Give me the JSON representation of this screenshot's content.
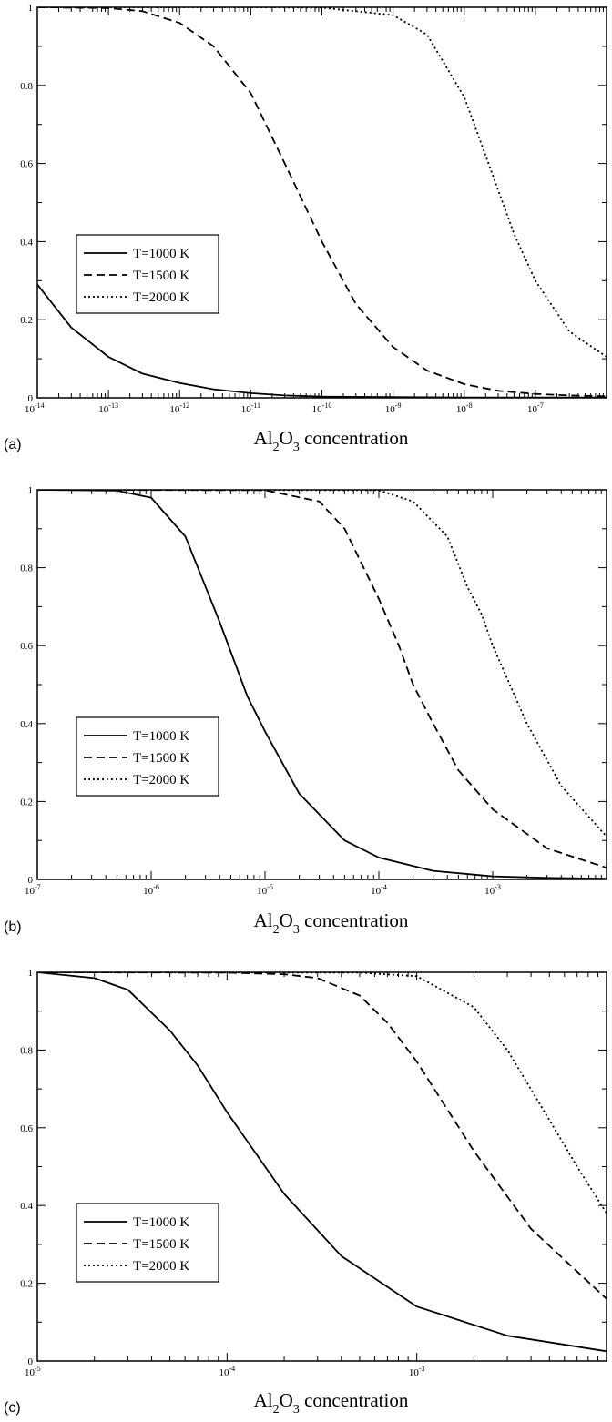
{
  "chart_data": [
    {
      "type": "line",
      "panel_label": "(a)",
      "xscale": "log",
      "xlim": [
        1e-14,
        1e-06
      ],
      "ylim": [
        0,
        1
      ],
      "x_tick_exponents": [
        "-14",
        "-13",
        "-12",
        "-11",
        "-10",
        "-9",
        "-8",
        "-7"
      ],
      "y_ticks": [
        "0",
        "0.2",
        "0.4",
        "0.6",
        "0.8",
        "1"
      ],
      "xlabel": {
        "base": "Al",
        "sub1": "2",
        "mid": "O",
        "sub2": "3",
        "rest": " concentration"
      },
      "legend_position": "lower-left",
      "series": [
        {
          "name": "T=1000 K",
          "style": "solid",
          "x": [
            1e-14,
            3e-14,
            1e-13,
            3e-13,
            1e-12,
            3e-12,
            1e-11,
            3e-11,
            1e-10,
            1e-09,
            1e-08,
            1e-07,
            1e-06
          ],
          "y": [
            0.29,
            0.18,
            0.105,
            0.062,
            0.038,
            0.022,
            0.012,
            0.006,
            0.003,
            0.002,
            0.001,
            0.001,
            0.001
          ]
        },
        {
          "name": "T=1500 K",
          "style": "dashed",
          "x": [
            1e-14,
            1e-13,
            3e-13,
            1e-12,
            3e-12,
            1e-11,
            3e-11,
            1e-10,
            3e-10,
            1e-09,
            3e-09,
            1e-08,
            3e-08,
            1e-07,
            3e-07,
            1e-06
          ],
          "y": [
            1.0,
            0.998,
            0.99,
            0.96,
            0.9,
            0.78,
            0.6,
            0.4,
            0.24,
            0.13,
            0.07,
            0.035,
            0.018,
            0.01,
            0.006,
            0.004
          ]
        },
        {
          "name": "T=2000 K",
          "style": "dotted",
          "x": [
            1e-14,
            1e-11,
            1e-10,
            1e-09,
            3e-09,
            1e-08,
            2e-08,
            5e-08,
            1e-07,
            3e-07,
            1e-06
          ],
          "y": [
            1.0,
            1.0,
            0.999,
            0.98,
            0.93,
            0.77,
            0.62,
            0.42,
            0.3,
            0.17,
            0.105
          ]
        }
      ]
    },
    {
      "type": "line",
      "panel_label": "(b)",
      "xscale": "log",
      "xlim": [
        1e-07,
        0.01
      ],
      "ylim": [
        0,
        1
      ],
      "x_tick_exponents": [
        "-7",
        "-6",
        "-5",
        "-4",
        "-3"
      ],
      "y_ticks": [
        "0",
        "0.2",
        "0.4",
        "0.6",
        "0.8",
        "1"
      ],
      "xlabel": {
        "base": "Al",
        "sub1": "2",
        "mid": "O",
        "sub2": "3",
        "rest": " concentration"
      },
      "legend_position": "lower-left",
      "series": [
        {
          "name": "T=1000 K",
          "style": "solid",
          "x": [
            1e-07,
            5e-07,
            1e-06,
            2e-06,
            4e-06,
            7e-06,
            1e-05,
            2e-05,
            5e-05,
            0.0001,
            0.0003,
            0.001,
            0.003,
            0.01
          ],
          "y": [
            1.0,
            0.998,
            0.98,
            0.88,
            0.66,
            0.47,
            0.38,
            0.22,
            0.1,
            0.056,
            0.022,
            0.008,
            0.004,
            0.002
          ]
        },
        {
          "name": "T=1500 K",
          "style": "dashed",
          "x": [
            1e-07,
            1e-05,
            3e-05,
            5e-05,
            0.0001,
            0.00015,
            0.0002,
            0.0003,
            0.0005,
            0.001,
            0.003,
            0.01
          ],
          "y": [
            1.0,
            0.999,
            0.97,
            0.9,
            0.72,
            0.6,
            0.5,
            0.4,
            0.28,
            0.18,
            0.08,
            0.03
          ]
        },
        {
          "name": "T=2000 K",
          "style": "dotted",
          "x": [
            1e-07,
            0.0001,
            0.0002,
            0.0004,
            0.0006,
            0.0008,
            0.001,
            0.002,
            0.004,
            0.01
          ],
          "y": [
            1.0,
            0.999,
            0.97,
            0.88,
            0.75,
            0.68,
            0.6,
            0.4,
            0.24,
            0.11
          ]
        }
      ]
    },
    {
      "type": "line",
      "panel_label": "(c)",
      "xscale": "log",
      "xlim": [
        1e-05,
        0.01
      ],
      "ylim": [
        0,
        1
      ],
      "x_tick_exponents": [
        "-5",
        "-4",
        "-3"
      ],
      "y_ticks": [
        "0",
        "0.2",
        "0.4",
        "0.6",
        "0.8",
        "1"
      ],
      "xlabel": {
        "base": "Al",
        "sub1": "2",
        "mid": "O",
        "sub2": "3",
        "rest": " concentration"
      },
      "legend_position": "lower-left",
      "series": [
        {
          "name": "T=1000 K",
          "style": "solid",
          "x": [
            1e-05,
            2e-05,
            3e-05,
            5e-05,
            7e-05,
            0.0001,
            0.0002,
            0.0004,
            0.001,
            0.003,
            0.01
          ],
          "y": [
            1.0,
            0.985,
            0.955,
            0.85,
            0.76,
            0.64,
            0.43,
            0.27,
            0.14,
            0.065,
            0.025
          ]
        },
        {
          "name": "T=1500 K",
          "style": "dashed",
          "x": [
            1e-05,
            0.0001,
            0.0002,
            0.0003,
            0.0005,
            0.0007,
            0.001,
            0.002,
            0.004,
            0.01
          ],
          "y": [
            1.0,
            0.999,
            0.995,
            0.985,
            0.94,
            0.87,
            0.77,
            0.54,
            0.34,
            0.16
          ]
        },
        {
          "name": "T=2000 K",
          "style": "dotted",
          "x": [
            1e-05,
            0.0005,
            0.001,
            0.002,
            0.003,
            0.005,
            0.007,
            0.01
          ],
          "y": [
            1.0,
            0.999,
            0.99,
            0.91,
            0.8,
            0.62,
            0.5,
            0.38
          ]
        }
      ]
    }
  ]
}
